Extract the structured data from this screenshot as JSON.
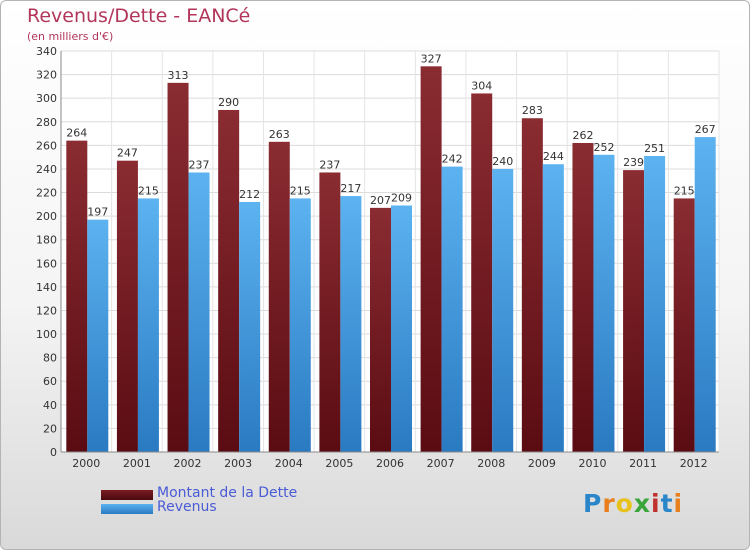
{
  "title": "Revenus/Dette - EANCé",
  "subtitle": "(en milliers d'€)",
  "colors": {
    "dette": "#7a1c22",
    "revenus": "#4aa3e6",
    "title": "#b2365a",
    "legend_text": "#4a5bd6"
  },
  "legend": [
    {
      "label": "Montant de la Dette",
      "icon": "dark-red-bar-swatch"
    },
    {
      "label": "Revenus",
      "icon": "blue-bar-swatch"
    }
  ],
  "logo": {
    "text": "Proxiti"
  },
  "chart_data": {
    "type": "bar",
    "title": "Revenus/Dette - EANCé",
    "subtitle": "(en milliers d'€)",
    "categories": [
      "2000",
      "2001",
      "2002",
      "2003",
      "2004",
      "2005",
      "2006",
      "2007",
      "2008",
      "2009",
      "2010",
      "2011",
      "2012"
    ],
    "series": [
      {
        "name": "Montant de la Dette",
        "values": [
          264,
          247,
          313,
          290,
          263,
          237,
          207,
          327,
          304,
          283,
          262,
          239,
          215
        ]
      },
      {
        "name": "Revenus",
        "values": [
          197,
          215,
          237,
          212,
          215,
          217,
          209,
          242,
          240,
          244,
          252,
          251,
          267
        ]
      }
    ],
    "ylim": [
      0,
      340
    ],
    "ytick_step": 20,
    "grid": true,
    "legend_position": "bottom-left"
  }
}
